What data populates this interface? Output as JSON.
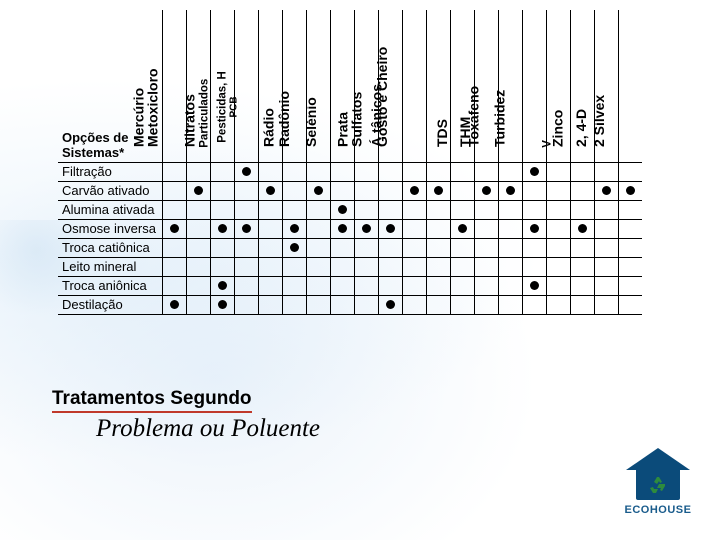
{
  "table": {
    "origin": "Opções de\nSistemas*",
    "columns": [
      {
        "label": "Mercúrio",
        "small": false
      },
      {
        "label": "Metoxicloro",
        "small": false
      },
      {
        "label": "Nitratos",
        "small": false
      },
      {
        "label": "Particulados",
        "small": true
      },
      {
        "label": "Pesticidas, H\nPCB",
        "small": true
      },
      {
        "label": "Rádio",
        "small": false
      },
      {
        "label": "Radônio",
        "small": false
      },
      {
        "label": "Selénio",
        "small": false
      },
      {
        "label": "Prata",
        "small": false
      },
      {
        "label": "Sulfatos",
        "small": false
      },
      {
        "label": "Á tânicos",
        "small": false
      },
      {
        "label": "Gosto e Cheiro",
        "small": false
      },
      {
        "label": "TDS",
        "small": false
      },
      {
        "label": "THM",
        "small": false
      },
      {
        "label": "Toxafeno",
        "small": false
      },
      {
        "label": "Turbidez",
        "small": false
      },
      {
        "label": "V",
        "small": true
      },
      {
        "label": "Zinco",
        "small": false
      },
      {
        "label": "2, 4-D",
        "small": false
      },
      {
        "label": "2 Silvex",
        "small": false
      }
    ],
    "rows": [
      {
        "label": "Filtração",
        "cells": [
          0,
          0,
          0,
          1,
          0,
          0,
          0,
          0,
          0,
          0,
          0,
          0,
          0,
          0,
          0,
          1,
          0,
          0,
          0,
          0
        ]
      },
      {
        "label": "Carvão ativado",
        "cells": [
          0,
          1,
          0,
          0,
          1,
          0,
          1,
          0,
          0,
          0,
          1,
          1,
          0,
          1,
          1,
          0,
          0,
          0,
          1,
          1
        ]
      },
      {
        "label": "Alumina ativada",
        "cells": [
          0,
          0,
          0,
          0,
          0,
          0,
          0,
          1,
          0,
          0,
          0,
          0,
          0,
          0,
          0,
          0,
          0,
          0,
          0,
          0
        ]
      },
      {
        "label": "Osmose inversa",
        "cells": [
          1,
          0,
          1,
          1,
          0,
          1,
          0,
          1,
          1,
          1,
          0,
          0,
          1,
          0,
          0,
          1,
          0,
          1,
          0,
          0
        ]
      },
      {
        "label": "Troca catiônica",
        "cells": [
          0,
          0,
          0,
          0,
          0,
          1,
          0,
          0,
          0,
          0,
          0,
          0,
          0,
          0,
          0,
          0,
          0,
          0,
          0,
          0
        ]
      },
      {
        "label": "Leito mineral",
        "cells": [
          0,
          0,
          0,
          0,
          0,
          0,
          0,
          0,
          0,
          0,
          0,
          0,
          0,
          0,
          0,
          0,
          0,
          0,
          0,
          0
        ]
      },
      {
        "label": "Troca aniônica",
        "cells": [
          0,
          0,
          1,
          0,
          0,
          0,
          0,
          0,
          0,
          0,
          0,
          0,
          0,
          0,
          0,
          1,
          0,
          0,
          0,
          0
        ]
      },
      {
        "label": "Destilação",
        "cells": [
          1,
          0,
          1,
          0,
          0,
          0,
          0,
          0,
          0,
          1,
          0,
          0,
          0,
          0,
          0,
          0,
          0,
          0,
          0,
          0
        ]
      }
    ]
  },
  "caption": {
    "line1": "Tratamentos Segundo",
    "line2": "Problema ou Poluente"
  },
  "logo": {
    "text": "ECOHOUSE"
  },
  "colors": {
    "underline": "#c0392b",
    "border": "#000000",
    "dot": "#000000",
    "logo_primary": "#0b4b7a",
    "logo_accent": "#2e8b3d"
  }
}
